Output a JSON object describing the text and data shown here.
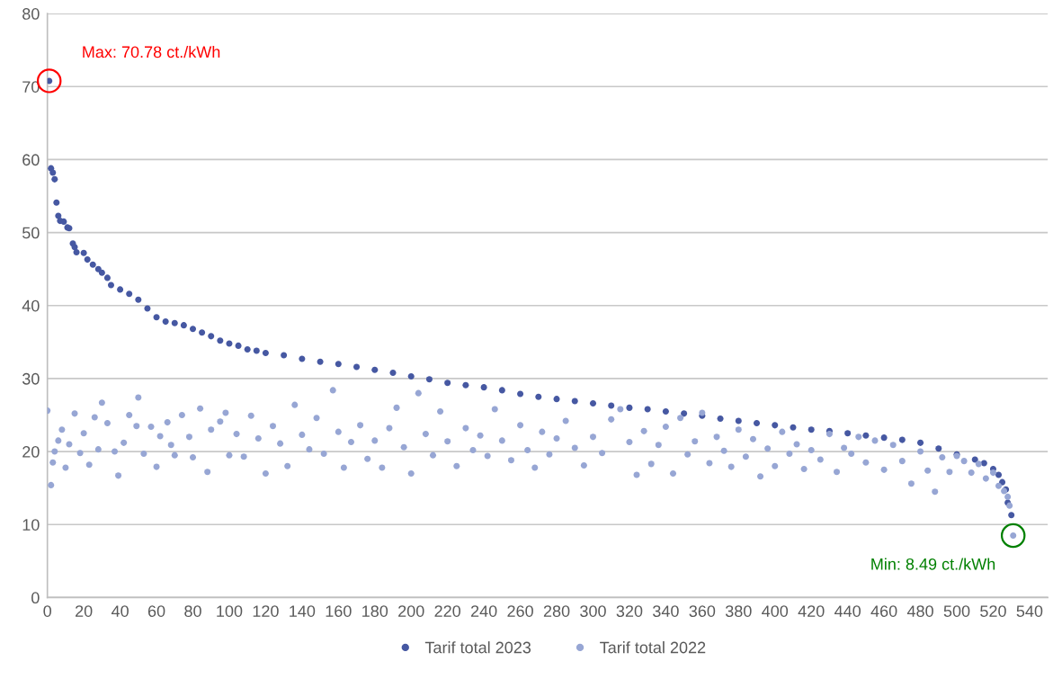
{
  "chart_data": {
    "type": "scatter",
    "xlim": [
      0,
      550
    ],
    "xticks": [
      0,
      20,
      40,
      60,
      80,
      100,
      120,
      140,
      160,
      180,
      200,
      220,
      240,
      260,
      280,
      300,
      320,
      340,
      360,
      380,
      400,
      420,
      440,
      460,
      480,
      500,
      520,
      540
    ],
    "ylim": [
      0,
      80
    ],
    "yticks": [
      0,
      10,
      20,
      30,
      40,
      50,
      60,
      70,
      80
    ],
    "grid": "y",
    "legend": "bottom",
    "marker": "circle",
    "annotations": [
      {
        "text": "Max: 70.78 ct./kWh",
        "x": 1,
        "y": 70.78
      },
      {
        "text": "Min: 8.49 ct./kWh",
        "x": 531,
        "y": 8.49
      }
    ],
    "series": [
      {
        "name": "Tarif total 2023",
        "color": "#4658a2",
        "x": [
          1,
          2,
          3,
          4,
          5,
          6,
          7,
          9,
          11,
          12,
          14,
          15,
          16,
          20,
          22,
          25,
          28,
          30,
          33,
          35,
          40,
          45,
          50,
          55,
          60,
          65,
          70,
          75,
          80,
          85,
          90,
          95,
          100,
          105,
          110,
          115,
          120,
          130,
          140,
          150,
          160,
          170,
          180,
          190,
          200,
          210,
          220,
          230,
          240,
          250,
          260,
          270,
          280,
          290,
          300,
          310,
          320,
          330,
          340,
          350,
          360,
          370,
          380,
          390,
          400,
          410,
          420,
          430,
          440,
          450,
          460,
          470,
          480,
          490,
          500,
          510,
          515,
          520,
          523,
          525,
          527,
          528,
          530
        ],
        "values": [
          70.78,
          58.8,
          58.2,
          57.3,
          54.1,
          52.3,
          51.6,
          51.5,
          50.7,
          50.6,
          48.5,
          48.0,
          47.3,
          47.2,
          46.3,
          45.6,
          45.0,
          44.5,
          43.8,
          42.8,
          42.2,
          41.6,
          40.8,
          39.6,
          38.4,
          37.8,
          37.6,
          37.3,
          36.8,
          36.3,
          35.8,
          35.2,
          34.8,
          34.5,
          34.0,
          33.8,
          33.5,
          33.2,
          32.7,
          32.3,
          32.0,
          31.6,
          31.2,
          30.8,
          30.3,
          29.9,
          29.4,
          29.1,
          28.8,
          28.4,
          27.9,
          27.5,
          27.2,
          26.9,
          26.6,
          26.3,
          26.0,
          25.8,
          25.5,
          25.2,
          24.9,
          24.5,
          24.2,
          23.9,
          23.6,
          23.3,
          23.0,
          22.8,
          22.5,
          22.2,
          21.9,
          21.6,
          21.2,
          20.4,
          19.6,
          18.9,
          18.4,
          17.6,
          16.8,
          15.8,
          14.8,
          13.0,
          11.3
        ]
      },
      {
        "name": "Tarif total 2022",
        "color": "#97a6d4",
        "x": [
          0,
          2,
          3,
          4,
          6,
          8,
          10,
          12,
          15,
          18,
          20,
          23,
          26,
          28,
          30,
          33,
          37,
          39,
          42,
          45,
          49,
          50,
          53,
          57,
          60,
          62,
          66,
          68,
          70,
          74,
          78,
          80,
          84,
          88,
          90,
          95,
          98,
          100,
          104,
          108,
          112,
          116,
          120,
          124,
          128,
          132,
          136,
          140,
          144,
          148,
          152,
          157,
          160,
          163,
          167,
          172,
          176,
          180,
          184,
          188,
          192,
          196,
          200,
          204,
          208,
          212,
          216,
          220,
          225,
          230,
          234,
          238,
          242,
          246,
          250,
          255,
          260,
          264,
          268,
          272,
          276,
          280,
          285,
          290,
          295,
          300,
          305,
          310,
          315,
          320,
          324,
          328,
          332,
          336,
          340,
          344,
          348,
          352,
          356,
          360,
          364,
          368,
          372,
          376,
          380,
          384,
          388,
          392,
          396,
          400,
          404,
          408,
          412,
          416,
          420,
          425,
          430,
          434,
          438,
          442,
          446,
          450,
          455,
          460,
          465,
          470,
          475,
          480,
          484,
          488,
          492,
          496,
          500,
          504,
          508,
          512,
          516,
          520,
          523,
          526,
          528,
          529,
          531
        ],
        "values": [
          25.6,
          15.4,
          18.5,
          20.0,
          21.5,
          23.0,
          17.8,
          21.0,
          25.2,
          19.8,
          22.5,
          18.2,
          24.7,
          20.3,
          26.7,
          23.9,
          20.0,
          16.7,
          21.2,
          25.0,
          23.5,
          27.4,
          19.7,
          23.4,
          17.9,
          22.1,
          24.0,
          20.9,
          19.5,
          25.0,
          22.0,
          19.2,
          25.9,
          17.2,
          23.0,
          24.1,
          25.3,
          19.5,
          22.4,
          19.3,
          24.9,
          21.8,
          17.0,
          23.5,
          21.1,
          18.0,
          26.4,
          22.3,
          20.3,
          24.6,
          19.7,
          28.4,
          22.7,
          17.8,
          21.3,
          23.6,
          19.0,
          21.5,
          17.8,
          23.2,
          26.0,
          20.6,
          17.0,
          28.0,
          22.4,
          19.5,
          25.5,
          21.4,
          18.0,
          23.2,
          20.2,
          22.2,
          19.4,
          25.8,
          21.5,
          18.8,
          23.6,
          20.2,
          17.8,
          22.7,
          19.6,
          21.8,
          24.2,
          20.5,
          18.1,
          22.0,
          19.8,
          24.4,
          25.8,
          21.3,
          16.8,
          22.8,
          18.3,
          20.9,
          23.4,
          17.0,
          24.6,
          19.6,
          21.4,
          25.3,
          18.4,
          22.0,
          20.1,
          17.9,
          23.0,
          19.3,
          21.7,
          16.6,
          20.4,
          18.0,
          22.7,
          19.7,
          21.0,
          17.6,
          20.2,
          18.9,
          22.4,
          17.2,
          20.5,
          19.7,
          22.0,
          18.5,
          21.5,
          17.5,
          20.9,
          18.7,
          15.6,
          20.0,
          17.4,
          14.5,
          19.2,
          17.2,
          19.4,
          18.7,
          17.1,
          18.3,
          16.3,
          17.1,
          15.3,
          14.6,
          13.8,
          12.6,
          8.49
        ]
      }
    ]
  }
}
